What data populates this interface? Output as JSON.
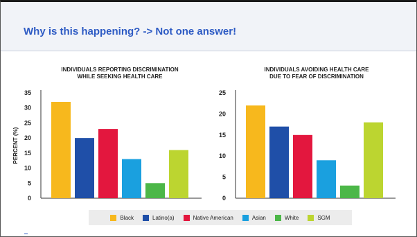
{
  "header": {
    "title": "Why is this happening? -> Not one answer!"
  },
  "chart_data": [
    {
      "type": "bar",
      "title_lines": [
        "INDIVIDUALS REPORTING DISCRIMINATION",
        "WHILE SEEKING HEALTH CARE"
      ],
      "ylabel": "PERCENT (%)",
      "categories": [
        "Black",
        "Latino(a)",
        "Native American",
        "Asian",
        "White",
        "SGM"
      ],
      "values": [
        32,
        20,
        23,
        13,
        5,
        16
      ],
      "ylim": [
        0,
        35
      ],
      "yticks": [
        "0",
        "5",
        "10",
        "15",
        "20",
        "25",
        "30",
        "35"
      ],
      "grid": false
    },
    {
      "type": "bar",
      "title_lines": [
        "INDIVIDUALS AVOIDING HEALTH CARE",
        "DUE TO FEAR OF DISCRIMINATION"
      ],
      "ylabel": "",
      "categories": [
        "Black",
        "Latino(a)",
        "Native American",
        "Asian",
        "White",
        "SGM"
      ],
      "values": [
        22,
        17,
        15,
        9,
        3,
        18
      ],
      "ylim": [
        0,
        25
      ],
      "yticks": [
        "0",
        "5",
        "10",
        "15",
        "20",
        "25"
      ],
      "grid": false
    }
  ],
  "legend": {
    "placement": "bottom",
    "items": [
      {
        "label": "Black",
        "color": "#f7b81d"
      },
      {
        "label": "Latino(a)",
        "color": "#1f4fa8"
      },
      {
        "label": "Native American",
        "color": "#e3173e"
      },
      {
        "label": "Asian",
        "color": "#1aa0df"
      },
      {
        "label": "White",
        "color": "#4cb748"
      },
      {
        "label": "SGM",
        "color": "#bcd530"
      }
    ]
  }
}
